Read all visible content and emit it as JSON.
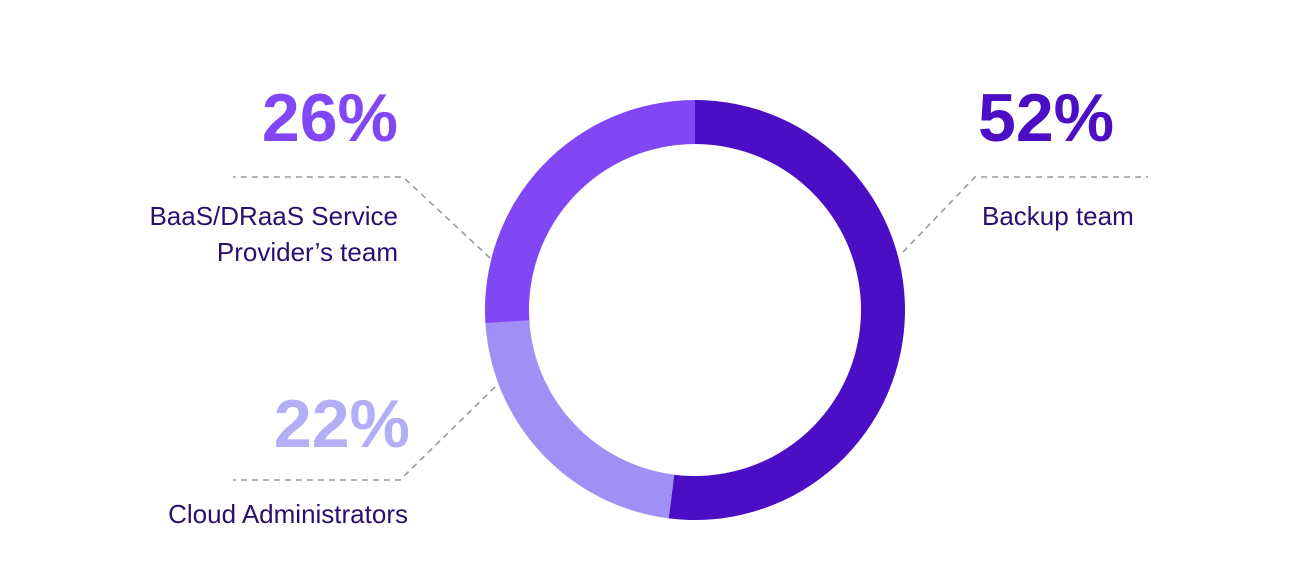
{
  "chart_data": {
    "type": "donut",
    "categories": [
      "Backup team",
      "Cloud Administrators",
      "BaaS/DRaaS Service Provider’s team"
    ],
    "values": [
      52,
      22,
      26
    ],
    "value_labels": [
      "52%",
      "22%",
      "26%"
    ],
    "colors": [
      "#4b0ec5",
      "#a090f5",
      "#8147f5"
    ],
    "value_label_colors": [
      "#4b0ec5",
      "#b4aef7",
      "#8147f5"
    ]
  }
}
